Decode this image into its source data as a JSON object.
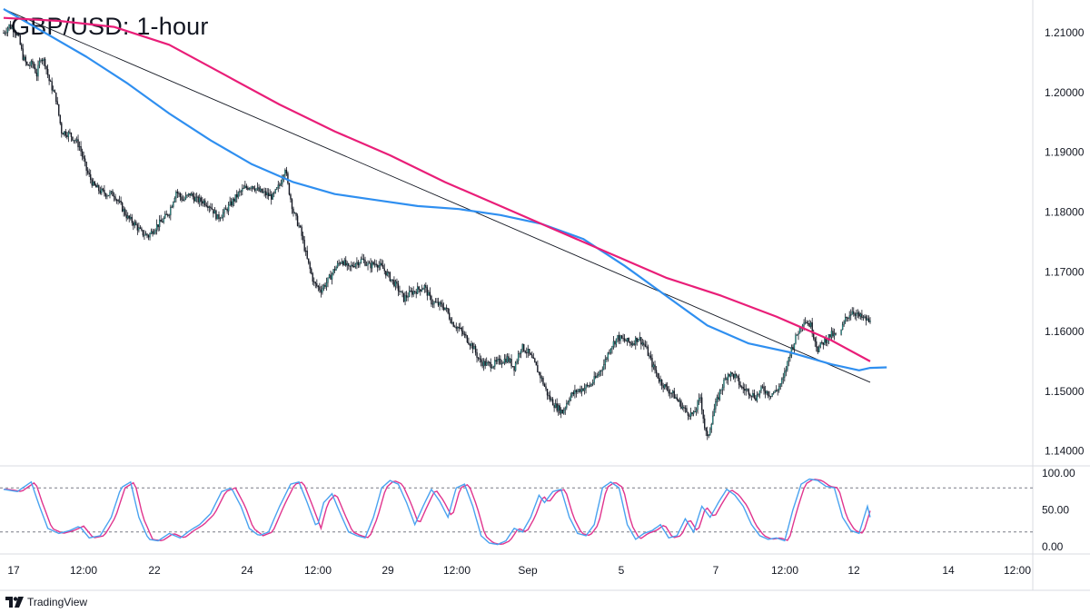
{
  "title": "GBP/USD: 1-hour",
  "branding": {
    "name": "TradingView",
    "icon": "tradingview-logo-icon"
  },
  "colors": {
    "up_candle": "#26a69a",
    "down_candle": "#131722",
    "ma_fast": "#2f8ff0",
    "ma_slow": "#e91e78",
    "trendline": "#131722",
    "oscillator_k": "#4aa3f0",
    "oscillator_d": "#e0348e",
    "grid_border": "#d8dbe2",
    "axis_text": "#131722"
  },
  "chart_data": [
    {
      "type": "candlestick",
      "title": "GBP/USD: 1-hour",
      "y_axis_position": "right",
      "yticks": [
        "1.21000",
        "1.20000",
        "1.19000",
        "1.18000",
        "1.17000",
        "1.16000",
        "1.15000",
        "1.14000"
      ],
      "ylim": [
        1.1375,
        1.2155
      ],
      "xticks": [
        "17",
        "12:00",
        "22",
        "24",
        "12:00",
        "29",
        "12:00",
        "Sep",
        "5",
        "7",
        "12:00",
        "12",
        "14",
        "12:00"
      ],
      "x_range_bars": [
        0,
        520
      ],
      "price_path": [
        [
          0,
          1.21
        ],
        [
          4,
          1.2112
        ],
        [
          8,
          1.2105
        ],
        [
          11,
          1.209
        ],
        [
          14,
          1.206
        ],
        [
          17,
          1.2045
        ],
        [
          21,
          1.2048
        ],
        [
          24,
          1.203
        ],
        [
          27,
          1.206
        ],
        [
          30,
          1.205
        ],
        [
          33,
          1.202
        ],
        [
          38,
          1.199
        ],
        [
          42,
          1.1935
        ],
        [
          48,
          1.193
        ],
        [
          52,
          1.192
        ],
        [
          55,
          1.191
        ],
        [
          60,
          1.187
        ],
        [
          65,
          1.1845
        ],
        [
          70,
          1.1835
        ],
        [
          75,
          1.183
        ],
        [
          80,
          1.183
        ],
        [
          85,
          1.181
        ],
        [
          90,
          1.179
        ],
        [
          95,
          1.178
        ],
        [
          100,
          1.1765
        ],
        [
          105,
          1.176
        ],
        [
          110,
          1.1775
        ],
        [
          115,
          1.1785
        ],
        [
          120,
          1.18
        ],
        [
          125,
          1.1835
        ],
        [
          130,
          1.182
        ],
        [
          135,
          1.183
        ],
        [
          140,
          1.182
        ],
        [
          145,
          1.1818
        ],
        [
          150,
          1.181
        ],
        [
          155,
          1.179
        ],
        [
          160,
          1.18
        ],
        [
          165,
          1.1815
        ],
        [
          170,
          1.183
        ],
        [
          175,
          1.184
        ],
        [
          180,
          1.1845
        ],
        [
          185,
          1.1835
        ],
        [
          190,
          1.183
        ],
        [
          195,
          1.1825
        ],
        [
          200,
          1.1845
        ],
        [
          204,
          1.1875
        ],
        [
          206,
          1.1845
        ],
        [
          210,
          1.18
        ],
        [
          215,
          1.177
        ],
        [
          220,
          1.172
        ],
        [
          225,
          1.168
        ],
        [
          230,
          1.167
        ],
        [
          235,
          1.1685
        ],
        [
          240,
          1.1705
        ],
        [
          245,
          1.172
        ],
        [
          250,
          1.1705
        ],
        [
          255,
          1.1715
        ],
        [
          260,
          1.172
        ],
        [
          265,
          1.171
        ],
        [
          270,
          1.1715
        ],
        [
          275,
          1.1705
        ],
        [
          280,
          1.169
        ],
        [
          285,
          1.1675
        ],
        [
          290,
          1.1655
        ],
        [
          295,
          1.1665
        ],
        [
          300,
          1.167
        ],
        [
          305,
          1.1675
        ],
        [
          310,
          1.165
        ],
        [
          315,
          1.1645
        ],
        [
          320,
          1.164
        ],
        [
          325,
          1.1615
        ],
        [
          330,
          1.1605
        ],
        [
          335,
          1.159
        ],
        [
          340,
          1.1575
        ],
        [
          345,
          1.155
        ],
        [
          350,
          1.1545
        ],
        [
          355,
          1.1545
        ],
        [
          360,
          1.155
        ],
        [
          365,
          1.1555
        ],
        [
          370,
          1.154
        ],
        [
          375,
          1.1575
        ],
        [
          380,
          1.1565
        ],
        [
          385,
          1.1545
        ],
        [
          390,
          1.152
        ],
        [
          395,
          1.149
        ],
        [
          400,
          1.1475
        ],
        [
          405,
          1.1465
        ],
        [
          410,
          1.149
        ],
        [
          415,
          1.15
        ],
        [
          420,
          1.1505
        ],
        [
          425,
          1.151
        ],
        [
          430,
          1.1525
        ],
        [
          435,
          1.1545
        ],
        [
          440,
          1.1575
        ],
        [
          445,
          1.159
        ],
        [
          450,
          1.1585
        ],
        [
          455,
          1.158
        ],
        [
          460,
          1.159
        ],
        [
          465,
          1.1575
        ],
        [
          470,
          1.1545
        ],
        [
          475,
          1.152
        ],
        [
          480,
          1.1505
        ],
        [
          485,
          1.1495
        ],
        [
          490,
          1.148
        ],
        [
          495,
          1.1465
        ],
        [
          500,
          1.146
        ],
        [
          505,
          1.149
        ],
        [
          508,
          1.144
        ],
        [
          510,
          1.142
        ],
        [
          515,
          1.147
        ],
        [
          520,
          1.1505
        ],
        [
          525,
          1.153
        ],
        [
          530,
          1.1525
        ],
        [
          535,
          1.1505
        ],
        [
          540,
          1.15
        ],
        [
          545,
          1.149
        ],
        [
          550,
          1.1505
        ],
        [
          555,
          1.1495
        ],
        [
          560,
          1.15
        ],
        [
          565,
          1.152
        ],
        [
          570,
          1.1565
        ],
        [
          575,
          1.1595
        ],
        [
          580,
          1.162
        ],
        [
          585,
          1.161
        ],
        [
          590,
          1.157
        ],
        [
          595,
          1.1585
        ],
        [
          600,
          1.1595
        ],
        [
          605,
          1.159
        ],
        [
          610,
          1.162
        ],
        [
          615,
          1.1635
        ],
        [
          620,
          1.1625
        ],
        [
          625,
          1.162
        ],
        [
          628,
          1.1615
        ]
      ],
      "bar_count": 629,
      "series": [
        {
          "name": "",
          "kind": "moving-average-fast",
          "path": [
            [
              0,
              1.214
            ],
            [
              30,
              1.21
            ],
            [
              60,
              1.206
            ],
            [
              90,
              1.2015
            ],
            [
              120,
              1.1965
            ],
            [
              150,
              1.192
            ],
            [
              180,
              1.188
            ],
            [
              210,
              1.185
            ],
            [
              240,
              1.183
            ],
            [
              270,
              1.182
            ],
            [
              300,
              1.181
            ],
            [
              330,
              1.1805
            ],
            [
              360,
              1.1795
            ],
            [
              390,
              1.178
            ],
            [
              420,
              1.1755
            ],
            [
              450,
              1.171
            ],
            [
              480,
              1.166
            ],
            [
              510,
              1.161
            ],
            [
              540,
              1.158
            ],
            [
              570,
              1.1565
            ],
            [
              600,
              1.1545
            ],
            [
              620,
              1.1535
            ],
            [
              640,
              1.154
            ],
            [
              628,
              1.1539
            ]
          ]
        },
        {
          "name": "",
          "kind": "moving-average-slow",
          "path": [
            [
              0,
              1.2125
            ],
            [
              40,
              1.212
            ],
            [
              80,
              1.211
            ],
            [
              120,
              1.208
            ],
            [
              160,
              1.203
            ],
            [
              200,
              1.198
            ],
            [
              240,
              1.1935
            ],
            [
              280,
              1.1895
            ],
            [
              320,
              1.185
            ],
            [
              360,
              1.181
            ],
            [
              400,
              1.177
            ],
            [
              440,
              1.173
            ],
            [
              480,
              1.169
            ],
            [
              520,
              1.166
            ],
            [
              560,
              1.1625
            ],
            [
              600,
              1.1585
            ],
            [
              628,
              1.155
            ]
          ]
        },
        {
          "name": "",
          "kind": "trendline",
          "path": [
            [
              0,
              1.214
            ],
            [
              628,
              1.1515
            ]
          ]
        }
      ]
    },
    {
      "type": "line",
      "kind": "stochastic-oscillator",
      "yticks": [
        "100.00",
        "50.00",
        "0.00"
      ],
      "ylim": [
        0,
        100
      ],
      "levels": [
        80,
        20
      ],
      "swing_points": [
        [
          0,
          78
        ],
        [
          10,
          75
        ],
        [
          20,
          88
        ],
        [
          25,
          60
        ],
        [
          32,
          25
        ],
        [
          40,
          18
        ],
        [
          48,
          22
        ],
        [
          55,
          28
        ],
        [
          62,
          12
        ],
        [
          70,
          15
        ],
        [
          78,
          40
        ],
        [
          85,
          80
        ],
        [
          92,
          88
        ],
        [
          98,
          40
        ],
        [
          105,
          10
        ],
        [
          112,
          8
        ],
        [
          120,
          18
        ],
        [
          128,
          12
        ],
        [
          135,
          22
        ],
        [
          142,
          30
        ],
        [
          150,
          45
        ],
        [
          158,
          75
        ],
        [
          165,
          80
        ],
        [
          172,
          55
        ],
        [
          178,
          25
        ],
        [
          185,
          15
        ],
        [
          192,
          20
        ],
        [
          200,
          55
        ],
        [
          208,
          85
        ],
        [
          214,
          88
        ],
        [
          220,
          60
        ],
        [
          227,
          25
        ],
        [
          232,
          60
        ],
        [
          238,
          72
        ],
        [
          244,
          45
        ],
        [
          250,
          20
        ],
        [
          256,
          15
        ],
        [
          262,
          12
        ],
        [
          268,
          40
        ],
        [
          274,
          80
        ],
        [
          280,
          90
        ],
        [
          286,
          85
        ],
        [
          292,
          60
        ],
        [
          298,
          30
        ],
        [
          304,
          55
        ],
        [
          310,
          78
        ],
        [
          316,
          62
        ],
        [
          322,
          40
        ],
        [
          328,
          80
        ],
        [
          334,
          85
        ],
        [
          340,
          55
        ],
        [
          346,
          15
        ],
        [
          352,
          5
        ],
        [
          358,
          3
        ],
        [
          364,
          8
        ],
        [
          370,
          25
        ],
        [
          376,
          20
        ],
        [
          382,
          40
        ],
        [
          388,
          70
        ],
        [
          392,
          60
        ],
        [
          398,
          75
        ],
        [
          404,
          78
        ],
        [
          410,
          40
        ],
        [
          416,
          18
        ],
        [
          422,
          15
        ],
        [
          428,
          30
        ],
        [
          434,
          80
        ],
        [
          440,
          88
        ],
        [
          446,
          80
        ],
        [
          452,
          30
        ],
        [
          458,
          10
        ],
        [
          464,
          18
        ],
        [
          470,
          22
        ],
        [
          476,
          30
        ],
        [
          482,
          12
        ],
        [
          488,
          15
        ],
        [
          494,
          38
        ],
        [
          500,
          20
        ],
        [
          506,
          55
        ],
        [
          512,
          40
        ],
        [
          518,
          60
        ],
        [
          524,
          78
        ],
        [
          530,
          70
        ],
        [
          536,
          55
        ],
        [
          542,
          30
        ],
        [
          548,
          15
        ],
        [
          554,
          10
        ],
        [
          560,
          12
        ],
        [
          566,
          8
        ],
        [
          572,
          50
        ],
        [
          578,
          85
        ],
        [
          584,
          92
        ],
        [
          590,
          90
        ],
        [
          596,
          82
        ],
        [
          602,
          80
        ],
        [
          608,
          40
        ],
        [
          614,
          22
        ],
        [
          620,
          18
        ],
        [
          626,
          55
        ],
        [
          628,
          40
        ]
      ]
    }
  ]
}
